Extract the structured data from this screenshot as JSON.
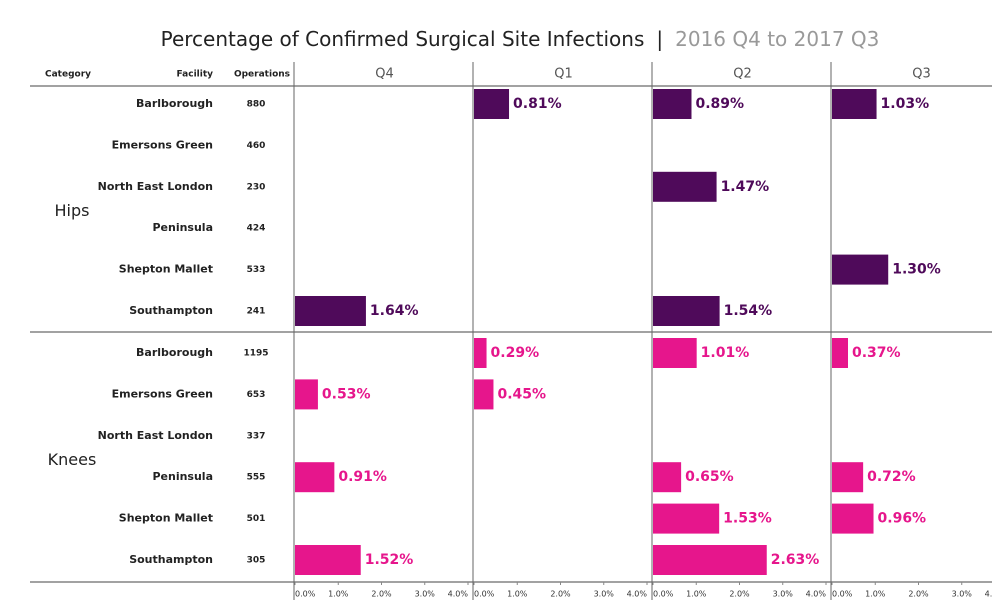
{
  "chart_data": {
    "type": "bar",
    "title": "Percentage of Confirmed Surgical Site Infections",
    "separator": "|",
    "subtitle": "2016 Q4 to 2017 Q3",
    "columns": [
      "Category",
      "Facility",
      "Operations"
    ],
    "groups": [
      {
        "name": "Hips",
        "color": "#4f0a5a",
        "facilities": [
          "Barlborough",
          "Emersons Green",
          "North East London",
          "Peninsula",
          "Shepton Mallet",
          "Southampton"
        ],
        "operations": [
          880,
          460,
          230,
          424,
          533,
          241
        ]
      },
      {
        "name": "Knees",
        "color": "#e6168c",
        "facilities": [
          "Barlborough",
          "Emersons Green",
          "North East London",
          "Peninsula",
          "Shepton Mallet",
          "Southampton"
        ],
        "operations": [
          1195,
          653,
          337,
          555,
          501,
          305
        ]
      }
    ],
    "series": [
      {
        "name": "Q4",
        "values": [
          [
            null,
            null,
            null,
            null,
            null,
            1.64
          ],
          [
            null,
            0.53,
            null,
            0.91,
            null,
            1.52
          ]
        ],
        "value_labels": [
          [
            null,
            null,
            null,
            null,
            null,
            "1.64%"
          ],
          [
            null,
            "0.53%",
            null,
            "0.91%",
            null,
            "1.52%"
          ]
        ]
      },
      {
        "name": "Q1",
        "values": [
          [
            0.81,
            null,
            null,
            null,
            null,
            null
          ],
          [
            0.29,
            0.45,
            null,
            null,
            null,
            null
          ]
        ],
        "value_labels": [
          [
            "0.81%",
            null,
            null,
            null,
            null,
            null
          ],
          [
            "0.29%",
            "0.45%",
            null,
            null,
            null,
            null
          ]
        ]
      },
      {
        "name": "Q2",
        "values": [
          [
            0.89,
            null,
            1.47,
            null,
            null,
            1.54
          ],
          [
            1.01,
            null,
            null,
            0.65,
            1.53,
            2.63
          ]
        ],
        "value_labels": [
          [
            "0.89%",
            null,
            "1.47%",
            null,
            null,
            "1.54%"
          ],
          [
            "1.01%",
            null,
            null,
            "0.65%",
            "1.53%",
            "2.63%"
          ]
        ]
      },
      {
        "name": "Q3",
        "values": [
          [
            1.03,
            null,
            null,
            null,
            1.3,
            null
          ],
          [
            0.37,
            null,
            null,
            0.72,
            0.96,
            null
          ]
        ],
        "value_labels": [
          [
            "1.03%",
            null,
            null,
            null,
            "1.30%",
            null
          ],
          [
            "0.37%",
            null,
            null,
            "0.72%",
            "0.96%",
            null
          ]
        ]
      }
    ],
    "xlim": [
      0,
      4
    ],
    "xticks": [
      {
        "value": 0,
        "label": "0.0%"
      },
      {
        "value": 1,
        "label": "1.0%"
      },
      {
        "value": 2,
        "label": "2.0%"
      },
      {
        "value": 3,
        "label": "3.0%"
      },
      {
        "value": 4,
        "label": "4.0%"
      }
    ]
  }
}
